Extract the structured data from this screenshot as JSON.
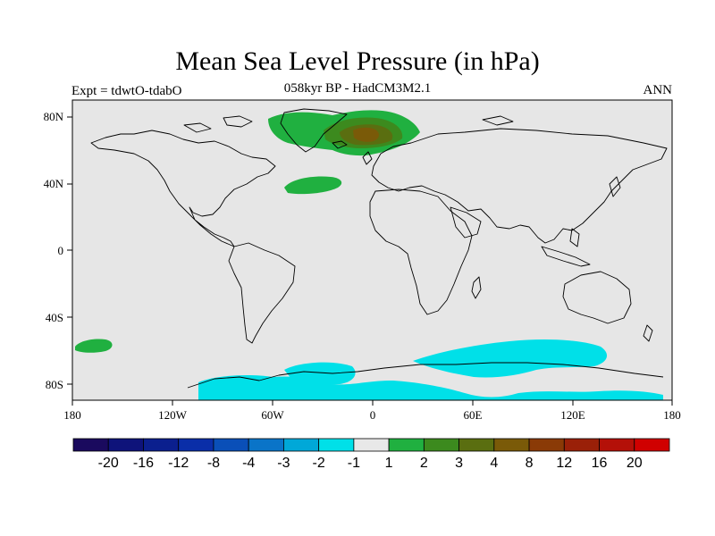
{
  "figure": {
    "title": "Mean Sea Level Pressure (in hPa)",
    "subtitle": "058kyr BP - HadCM3M2.1",
    "left_label": "Expt = tdwtO-tdabO",
    "right_label": "ANN"
  },
  "axes": {
    "x_ticks": [
      "180",
      "120W",
      "60W",
      "0",
      "60E",
      "120E",
      "180"
    ],
    "y_ticks": [
      "80N",
      "40N",
      "0",
      "40S",
      "80S"
    ]
  },
  "colorbar": {
    "labels": [
      "-20",
      "-16",
      "-12",
      "-8",
      "-4",
      "-3",
      "-2",
      "-1",
      "1",
      "2",
      "3",
      "4",
      "8",
      "12",
      "16",
      "20"
    ],
    "colors": [
      "#1a0a5e",
      "#0e137a",
      "#0b1f8e",
      "#0a2ea8",
      "#0a4fb8",
      "#0a74c8",
      "#00a8d8",
      "#00e0e8",
      "#e8e8e8",
      "#20b040",
      "#3c8a1e",
      "#5a6e10",
      "#7a5a08",
      "#8a3a06",
      "#9a2008",
      "#b41008",
      "#d00000"
    ]
  },
  "colors": {
    "ocean_background": "#e6e6e6",
    "positive_1_2": "#20b040",
    "positive_2_3": "#3c8a1e",
    "positive_3_4": "#5a6e10",
    "positive_4_8": "#7a5a08",
    "negative_1_2": "#00e0e8"
  }
}
